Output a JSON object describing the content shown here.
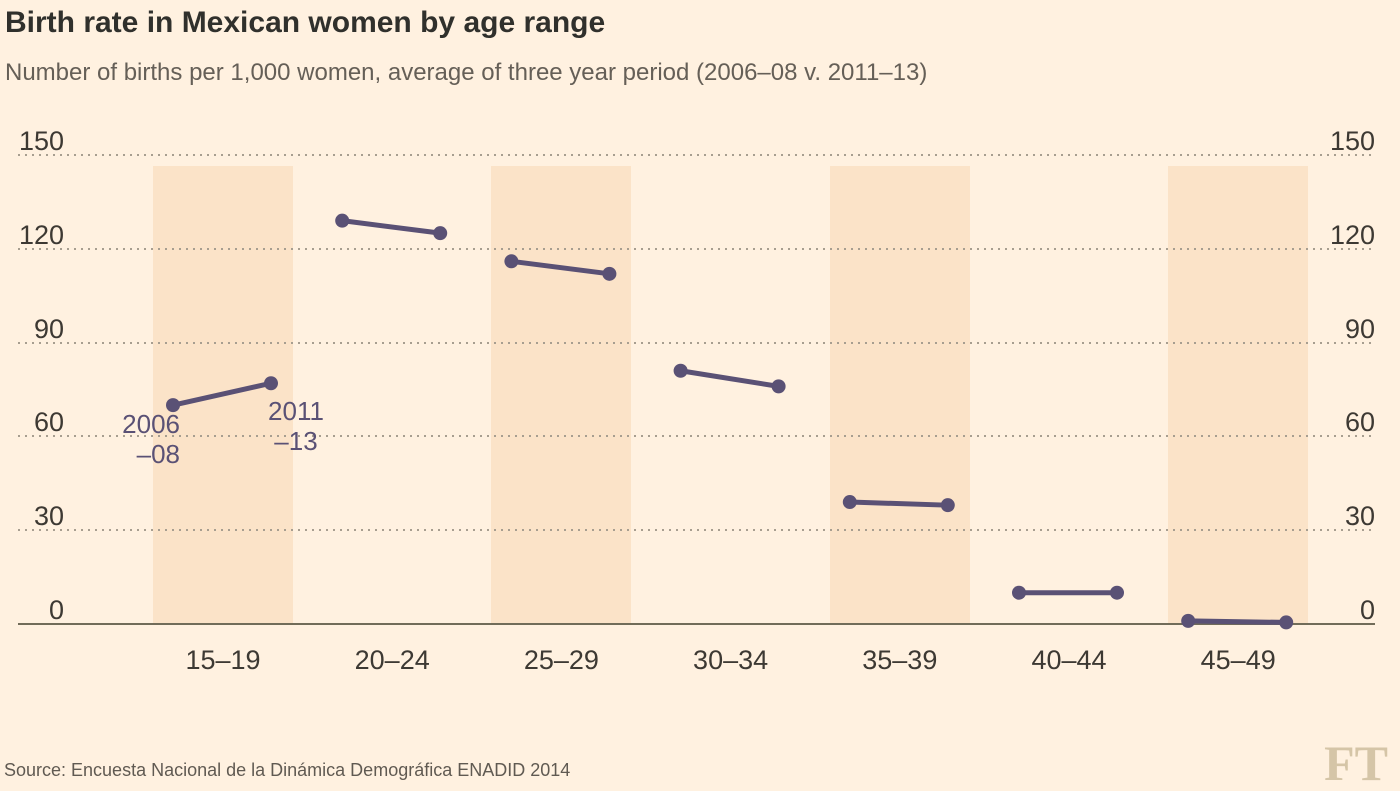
{
  "header": {
    "title": "Birth rate in Mexican women by age range",
    "subtitle": "Number of births per 1,000 women, average of three year period (2006–08 v. 2011–13)"
  },
  "chart_data": {
    "type": "line",
    "subtype": "slope-comparison-pairs",
    "title": "Birth rate in Mexican women by age range",
    "subtitle": "Number of births per 1,000 women, average of three year period (2006–08 v. 2011–13)",
    "categories": [
      "15–19",
      "20–24",
      "25–29",
      "30–34",
      "35–39",
      "40–44",
      "45–49"
    ],
    "series": [
      {
        "name": "2006–08",
        "values": [
          70,
          129,
          116,
          81,
          39,
          10,
          1
        ]
      },
      {
        "name": "2011–13",
        "values": [
          77,
          125,
          112,
          76,
          38,
          10,
          0.5
        ]
      }
    ],
    "y_ticks": [
      0,
      30,
      60,
      90,
      120,
      150
    ],
    "ylim": [
      0,
      150
    ],
    "xlabel": "",
    "ylabel": "Number of births per 1,000 women",
    "y_axis_sides": "both",
    "grid": "dotted horizontal gridlines, solid baseline at 0",
    "legend_position": "none (direct annotations on first category)",
    "shaded_category_indices": [
      0,
      2,
      4,
      6
    ],
    "annotations": [
      {
        "lines": [
          "2006",
          "–08"
        ],
        "series": "2006–08",
        "category": "15–19"
      },
      {
        "lines": [
          "2011",
          "–13"
        ],
        "series": "2011–13",
        "category": "15–19"
      }
    ]
  },
  "footer": {
    "source": "Source: Encuesta Nacional de la Dinámica Demográfica ENADID 2014",
    "logo": "FT"
  },
  "colors": {
    "background": "#FFF1E0",
    "band": "#FBE3C8",
    "series": "#5A5175",
    "grid_dots": "#A79E90",
    "axis_line": "#716C59",
    "title_text": "#30302C",
    "subtitle_text": "#655F57",
    "tick_text": "#3D3933",
    "source_text": "#605A52",
    "logo": "#D5C5A7"
  }
}
